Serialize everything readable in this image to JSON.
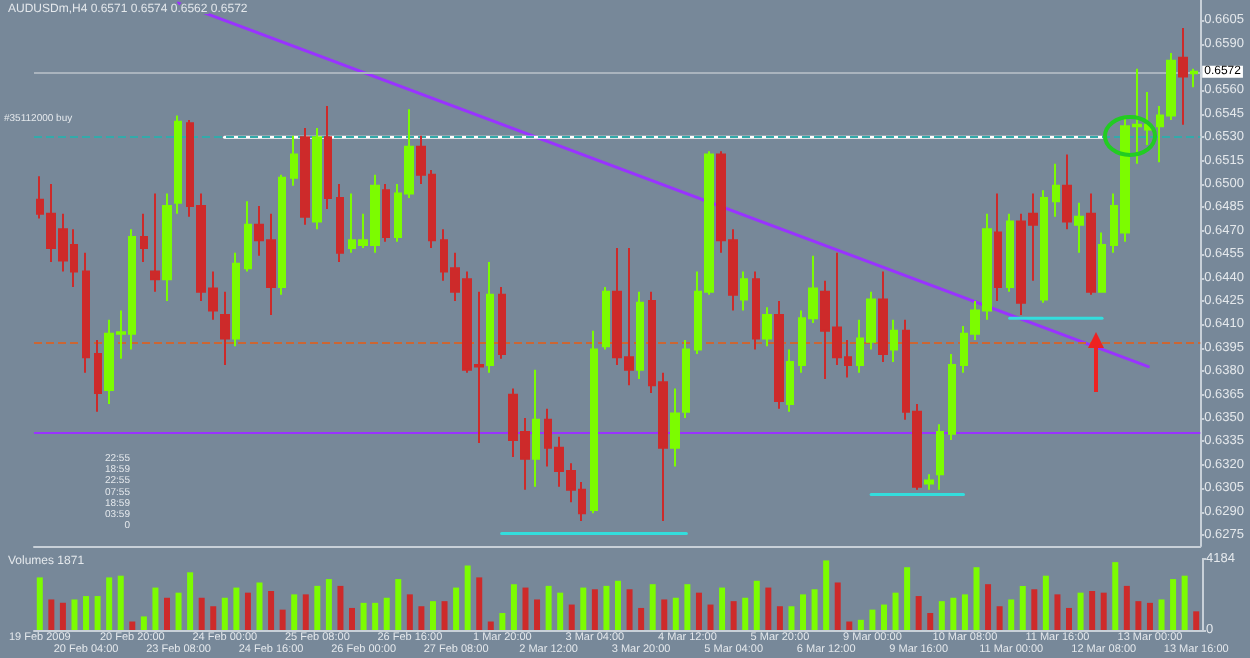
{
  "chart_data": [
    {
      "type": "candlestick",
      "title": "AUDUSDm,H4 0.6571 0.6574 0.6562 0.6572",
      "categories": [
        "19 Feb 2009",
        null,
        null,
        null,
        "20 Feb 04:00",
        null,
        null,
        null,
        "20 Feb 20:00",
        null,
        null,
        null,
        "23 Feb 08:00",
        null,
        null,
        null,
        "24 Feb 00:00",
        null,
        null,
        null,
        "24 Feb 16:00",
        null,
        null,
        null,
        "25 Feb 08:00",
        null,
        null,
        null,
        "26 Feb 00:00",
        null,
        null,
        null,
        "26 Feb 16:00",
        null,
        null,
        null,
        "27 Feb 08:00",
        null,
        null,
        null,
        "1 Mar 20:00",
        null,
        null,
        null,
        "2 Mar 12:00",
        null,
        null,
        null,
        "3 Mar 04:00",
        null,
        null,
        null,
        "3 Mar 20:00",
        null,
        null,
        null,
        "4 Mar 12:00",
        null,
        null,
        null,
        "5 Mar 04:00",
        null,
        null,
        null,
        "5 Mar 20:00",
        null,
        null,
        null,
        "6 Mar 12:00",
        null,
        null,
        null,
        "9 Mar 00:00",
        null,
        null,
        null,
        "9 Mar 16:00",
        null,
        null,
        null,
        "10 Mar 08:00",
        null,
        null,
        null,
        "11 Mar 00:00",
        null,
        null,
        null,
        "11 Mar 16:00",
        null,
        null,
        null,
        "12 Mar 08:00",
        null,
        null,
        null,
        "13 Mar 00:00",
        null,
        null,
        null,
        "13 Mar 16:00"
      ],
      "ohlc": [
        [
          0.649,
          0.6505,
          0.6478,
          0.6481
        ],
        [
          0.6481,
          0.65,
          0.645,
          0.6459
        ],
        [
          0.6471,
          0.6481,
          0.6444,
          0.6451
        ],
        [
          0.6461,
          0.6471,
          0.6434,
          0.6444
        ],
        [
          0.6444,
          0.6456,
          0.6379,
          0.6389
        ],
        [
          0.6391,
          0.64,
          0.6354,
          0.6366
        ],
        [
          0.6368,
          0.6413,
          0.6359,
          0.6404
        ],
        [
          0.6404,
          0.6419,
          0.6388,
          0.6405
        ],
        [
          0.6404,
          0.6471,
          0.6394,
          0.6466
        ],
        [
          0.6466,
          0.6481,
          0.645,
          0.6459
        ],
        [
          0.6444,
          0.6494,
          0.6431,
          0.6439
        ],
        [
          0.6439,
          0.6494,
          0.6425,
          0.6486
        ],
        [
          0.6488,
          0.6544,
          0.6481,
          0.654
        ],
        [
          0.6539,
          0.6541,
          0.6479,
          0.6486
        ],
        [
          0.6486,
          0.6494,
          0.6425,
          0.6431
        ],
        [
          0.6433,
          0.6444,
          0.6413,
          0.6419
        ],
        [
          0.6416,
          0.6431,
          0.6384,
          0.6401
        ],
        [
          0.6401,
          0.6456,
          0.6396,
          0.6449
        ],
        [
          0.6446,
          0.6489,
          0.6444,
          0.6474
        ],
        [
          0.6474,
          0.6486,
          0.6454,
          0.6464
        ],
        [
          0.6464,
          0.6481,
          0.6416,
          0.6434
        ],
        [
          0.6434,
          0.6506,
          0.6429,
          0.6504
        ],
        [
          0.6504,
          0.6531,
          0.6499,
          0.6519
        ],
        [
          0.653,
          0.6536,
          0.6474,
          0.6479
        ],
        [
          0.6476,
          0.6536,
          0.6471,
          0.653
        ],
        [
          0.653,
          0.655,
          0.6484,
          0.6491
        ],
        [
          0.6491,
          0.65,
          0.645,
          0.6456
        ],
        [
          0.6459,
          0.6494,
          0.6456,
          0.6464
        ],
        [
          0.6461,
          0.6481,
          0.6459,
          0.6464
        ],
        [
          0.6461,
          0.6506,
          0.6456,
          0.6499
        ],
        [
          0.6496,
          0.65,
          0.6463,
          0.6466
        ],
        [
          0.6466,
          0.65,
          0.6463,
          0.6494
        ],
        [
          0.6494,
          0.6548,
          0.6491,
          0.6524
        ],
        [
          0.6524,
          0.6531,
          0.65,
          0.6506
        ],
        [
          0.6506,
          0.6509,
          0.6459,
          0.6464
        ],
        [
          0.6464,
          0.6471,
          0.6438,
          0.6444
        ],
        [
          0.6446,
          0.6456,
          0.6425,
          0.6431
        ],
        [
          0.6439,
          0.6444,
          0.6379,
          0.6381
        ],
        [
          0.6384,
          0.6431,
          0.6334,
          0.6383
        ],
        [
          0.6384,
          0.645,
          0.6379,
          0.6429
        ],
        [
          0.6429,
          0.6434,
          0.6388,
          0.6391
        ],
        [
          0.6365,
          0.6369,
          0.6325,
          0.6336
        ],
        [
          0.6341,
          0.635,
          0.6304,
          0.6324
        ],
        [
          0.6324,
          0.6381,
          0.6306,
          0.6349
        ],
        [
          0.6349,
          0.6356,
          0.6319,
          0.6331
        ],
        [
          0.6331,
          0.6338,
          0.6306,
          0.6316
        ],
        [
          0.6316,
          0.6321,
          0.6296,
          0.6304
        ],
        [
          0.6304,
          0.6309,
          0.6284,
          0.6289
        ],
        [
          0.6291,
          0.6406,
          0.6289,
          0.6394
        ],
        [
          0.6396,
          0.6434,
          0.6394,
          0.6431
        ],
        [
          0.6431,
          0.6459,
          0.6384,
          0.6389
        ],
        [
          0.6389,
          0.6459,
          0.6371,
          0.6381
        ],
        [
          0.6381,
          0.6431,
          0.6375,
          0.6424
        ],
        [
          0.6425,
          0.6431,
          0.6366,
          0.6371
        ],
        [
          0.6373,
          0.6379,
          0.6284,
          0.6331
        ],
        [
          0.6331,
          0.6369,
          0.6319,
          0.6353
        ],
        [
          0.6354,
          0.64,
          0.635,
          0.6394
        ],
        [
          0.6394,
          0.6444,
          0.6391,
          0.6431
        ],
        [
          0.6431,
          0.6521,
          0.6429,
          0.6519
        ],
        [
          0.6519,
          0.6521,
          0.6456,
          0.6464
        ],
        [
          0.6464,
          0.6471,
          0.6419,
          0.6429
        ],
        [
          0.6426,
          0.6444,
          0.6419,
          0.6439
        ],
        [
          0.6439,
          0.6444,
          0.6394,
          0.6401
        ],
        [
          0.6401,
          0.6421,
          0.6396,
          0.6416
        ],
        [
          0.6416,
          0.6425,
          0.6356,
          0.6361
        ],
        [
          0.6359,
          0.6394,
          0.6354,
          0.6386
        ],
        [
          0.6384,
          0.6419,
          0.6379,
          0.6414
        ],
        [
          0.6414,
          0.6454,
          0.6411,
          0.6433
        ],
        [
          0.6431,
          0.6438,
          0.6375,
          0.6406
        ],
        [
          0.6408,
          0.6456,
          0.6384,
          0.6389
        ],
        [
          0.6389,
          0.64,
          0.6376,
          0.6384
        ],
        [
          0.6384,
          0.6413,
          0.6379,
          0.6401
        ],
        [
          0.6399,
          0.6431,
          0.6394,
          0.6426
        ],
        [
          0.6426,
          0.6444,
          0.6386,
          0.6391
        ],
        [
          0.6394,
          0.6413,
          0.6386,
          0.6406
        ],
        [
          0.6406,
          0.6413,
          0.6349,
          0.6354
        ],
        [
          0.6354,
          0.6359,
          0.6304,
          0.6306
        ],
        [
          0.6308,
          0.6314,
          0.6304,
          0.631
        ],
        [
          0.6314,
          0.6346,
          0.6304,
          0.6341
        ],
        [
          0.634,
          0.6391,
          0.6336,
          0.6384
        ],
        [
          0.6384,
          0.6409,
          0.6379,
          0.6404
        ],
        [
          0.6404,
          0.6425,
          0.64,
          0.6419
        ],
        [
          0.6419,
          0.6481,
          0.6413,
          0.6471
        ],
        [
          0.6469,
          0.6494,
          0.6425,
          0.6434
        ],
        [
          0.6434,
          0.6481,
          0.6431,
          0.6476
        ],
        [
          0.6476,
          0.6481,
          0.6416,
          0.6424
        ],
        [
          0.6481,
          0.6494,
          0.6438,
          0.6474
        ],
        [
          0.6426,
          0.6496,
          0.6424,
          0.6491
        ],
        [
          0.6489,
          0.6513,
          0.6479,
          0.6499
        ],
        [
          0.6499,
          0.6519,
          0.6471,
          0.6476
        ],
        [
          0.6474,
          0.6488,
          0.6456,
          0.6479
        ],
        [
          0.6481,
          0.6494,
          0.6429,
          0.6431
        ],
        [
          0.6431,
          0.6469,
          0.6431,
          0.6461
        ],
        [
          0.6461,
          0.6494,
          0.6456,
          0.6486
        ],
        [
          0.6469,
          0.6544,
          0.6463,
          0.6537
        ],
        [
          0.6537,
          0.6574,
          0.6513,
          0.6538
        ],
        [
          0.6535,
          0.6559,
          0.6525,
          0.6538
        ],
        [
          0.6537,
          0.655,
          0.6514,
          0.6544
        ],
        [
          0.6544,
          0.6584,
          0.6541,
          0.6579
        ],
        [
          0.6581,
          0.66,
          0.6538,
          0.6569
        ],
        [
          0.6571,
          0.6574,
          0.6562,
          0.6572
        ]
      ],
      "colors": [
        "#cd2a2a",
        "#cd2a2a",
        "#cd2a2a",
        "#cd2a2a",
        "#cd2a2a",
        "#cd2a2a",
        "#7cfc00",
        "#7cfc00",
        "#7cfc00",
        "#cd2a2a",
        "#cd2a2a",
        "#7cfc00",
        "#7cfc00",
        "#cd2a2a",
        "#cd2a2a",
        "#cd2a2a",
        "#cd2a2a",
        "#7cfc00",
        "#7cfc00",
        "#cd2a2a",
        "#cd2a2a",
        "#7cfc00",
        "#7cfc00",
        "#cd2a2a",
        "#7cfc00",
        "#cd2a2a",
        "#cd2a2a",
        "#7cfc00",
        "#7cfc00",
        "#7cfc00",
        "#cd2a2a",
        "#7cfc00",
        "#7cfc00",
        "#cd2a2a",
        "#cd2a2a",
        "#cd2a2a",
        "#cd2a2a",
        "#cd2a2a",
        "#cd2a2a",
        "#7cfc00",
        "#cd2a2a",
        "#cd2a2a",
        "#cd2a2a",
        "#7cfc00",
        "#cd2a2a",
        "#cd2a2a",
        "#cd2a2a",
        "#cd2a2a",
        "#7cfc00",
        "#7cfc00",
        "#cd2a2a",
        "#cd2a2a",
        "#7cfc00",
        "#cd2a2a",
        "#cd2a2a",
        "#7cfc00",
        "#7cfc00",
        "#7cfc00",
        "#7cfc00",
        "#cd2a2a",
        "#cd2a2a",
        "#7cfc00",
        "#cd2a2a",
        "#7cfc00",
        "#cd2a2a",
        "#7cfc00",
        "#7cfc00",
        "#7cfc00",
        "#cd2a2a",
        "#cd2a2a",
        "#cd2a2a",
        "#7cfc00",
        "#7cfc00",
        "#cd2a2a",
        "#7cfc00",
        "#cd2a2a",
        "#cd2a2a",
        "#7cfc00",
        "#7cfc00",
        "#7cfc00",
        "#7cfc00",
        "#7cfc00",
        "#7cfc00",
        "#cd2a2a",
        "#7cfc00",
        "#cd2a2a",
        "#cd2a2a",
        "#7cfc00",
        "#7cfc00",
        "#cd2a2a",
        "#7cfc00",
        "#cd2a2a",
        "#7cfc00",
        "#7cfc00",
        "#7cfc00",
        "#7cfc00",
        "#7cfc00",
        "#7cfc00",
        "#7cfc00",
        "#cd2a2a",
        "#7cfc00"
      ],
      "series": [
        {
          "type": "line",
          "color": "#9933ff",
          "x": [
            "23 Feb 08:00",
            "13 Mar 00:00"
          ],
          "values": [
            0.6616,
            0.6383
          ]
        },
        {
          "type": "line",
          "color": "#ffffff",
          "x": [
            "24 Feb 00:00",
            "12 Mar 08:00"
          ],
          "values": [
            0.653,
            0.653
          ]
        },
        {
          "type": "line",
          "color": "#33dddd",
          "x": [
            "1 Mar 20:00",
            "4 Mar 12:00"
          ],
          "values": [
            0.6276,
            0.6276
          ]
        },
        {
          "type": "line",
          "color": "#33dddd",
          "x": [
            "9 Mar 00:00",
            "10 Mar 08:00"
          ],
          "values": [
            0.6301,
            0.6301
          ]
        },
        {
          "type": "line",
          "color": "#33dddd",
          "x": [
            "11 Mar 00:00",
            "12 Mar 08:00"
          ],
          "values": [
            0.6414,
            0.6414
          ]
        }
      ],
      "ref_lines": [
        {
          "axis": "y",
          "value": 0.653,
          "color": "#33aaaa",
          "line_style": "dashed"
        },
        {
          "axis": "y",
          "value": 0.6399,
          "color": "#cc6633",
          "line_style": "dashed"
        },
        {
          "axis": "y",
          "value": 0.6341,
          "color": "#9933ff",
          "line_style": "solid"
        },
        {
          "axis": "y",
          "value": 0.6572,
          "color": "#aab4be",
          "line_style": "solid",
          "label": "0.6572"
        }
      ],
      "annotations": [
        "#35112000 buy",
        "22:55",
        "18:59",
        "22:55",
        "07:55",
        "18:59",
        "03:59",
        "0"
      ],
      "ylim": [
        0.6268,
        0.6618
      ],
      "yticks": [
        0.6605,
        {
          "value": 0.659,
          "label": "0.6590"
        },
        {
          "value": 0.656,
          "label": "0.6560"
        },
        0.6545,
        {
          "value": 0.653,
          "label": "0.6530"
        },
        0.6515,
        {
          "value": 0.65,
          "label": "0.6500"
        },
        0.6485,
        {
          "value": 0.647,
          "label": "0.6470"
        },
        0.6455,
        {
          "value": 0.644,
          "label": "0.6440"
        },
        0.6425,
        {
          "value": 0.641,
          "label": "0.6410"
        },
        0.6395,
        {
          "value": 0.638,
          "label": "0.6380"
        },
        0.6365,
        {
          "value": 0.635,
          "label": "0.6350"
        },
        0.6335,
        {
          "value": 0.632,
          "label": "0.6320"
        },
        0.6305,
        {
          "value": 0.629,
          "label": "0.6290"
        },
        0.6275
      ],
      "tick_labels": "y",
      "grid": false
    },
    {
      "type": "bar",
      "title": "Volumes 1871",
      "categories": [
        "19 Feb 2009",
        null,
        null,
        null,
        "20 Feb 04:00",
        null,
        null,
        null,
        "20 Feb 20:00",
        null,
        null,
        null,
        "23 Feb 08:00",
        null,
        null,
        null,
        "24 Feb 00:00",
        null,
        null,
        null,
        "24 Feb 16:00",
        null,
        null,
        null,
        "25 Feb 08:00",
        null,
        null,
        null,
        "26 Feb 00:00",
        null,
        null,
        null,
        "26 Feb 16:00",
        null,
        null,
        null,
        "27 Feb 08:00",
        null,
        null,
        null,
        "1 Mar 20:00",
        null,
        null,
        null,
        "2 Mar 12:00",
        null,
        null,
        null,
        "3 Mar 04:00",
        null,
        null,
        null,
        "3 Mar 20:00",
        null,
        null,
        null,
        "4 Mar 12:00",
        null,
        null,
        null,
        "5 Mar 04:00",
        null,
        null,
        null,
        "5 Mar 20:00",
        null,
        null,
        null,
        "6 Mar 12:00",
        null,
        null,
        null,
        "9 Mar 00:00",
        null,
        null,
        null,
        "9 Mar 16:00",
        null,
        null,
        null,
        "10 Mar 08:00",
        null,
        null,
        null,
        "11 Mar 00:00",
        null,
        null,
        null,
        "11 Mar 16:00",
        null,
        null,
        null,
        "12 Mar 08:00",
        null,
        null,
        null,
        "13 Mar 00:00",
        null,
        null,
        null,
        "13 Mar 16:00"
      ],
      "values": [
        3100,
        1800,
        1600,
        1800,
        2000,
        2000,
        3100,
        3200,
        500,
        800,
        2500,
        1900,
        2200,
        3400,
        1900,
        1400,
        1900,
        2500,
        2200,
        2800,
        2300,
        1200,
        2100,
        2100,
        2600,
        3000,
        2600,
        1300,
        1600,
        1600,
        1900,
        3000,
        2100,
        1400,
        1700,
        1700,
        2500,
        3800,
        3100,
        500,
        1000,
        2700,
        2500,
        1800,
        2600,
        2200,
        1500,
        2500,
        2400,
        2600,
        2900,
        2400,
        1300,
        2700,
        1800,
        1900,
        2700,
        2200,
        1500,
        2500,
        1700,
        1900,
        2900,
        2500,
        1400,
        1400,
        2100,
        2400,
        4100,
        2800,
        500,
        600,
        1200,
        1500,
        2200,
        3700,
        2000,
        1000,
        1700,
        1900,
        2100,
        3700,
        2700,
        1400,
        1800,
        2600,
        2400,
        3200,
        2100,
        1300,
        2200,
        2300,
        2200,
        4000,
        2600,
        1700,
        1600,
        1800,
        3000,
        3200,
        1100
      ],
      "colors": [
        "#7cfc00",
        "#cd2a2a",
        "#cd2a2a",
        "#7cfc00",
        "#7cfc00",
        "#7cfc00",
        "#7cfc00",
        "#7cfc00",
        "#cd2a2a",
        "#7cfc00",
        "#7cfc00",
        "#cd2a2a",
        "#7cfc00",
        "#7cfc00",
        "#cd2a2a",
        "#cd2a2a",
        "#7cfc00",
        "#7cfc00",
        "#cd2a2a",
        "#7cfc00",
        "#cd2a2a",
        "#cd2a2a",
        "#7cfc00",
        "#cd2a2a",
        "#7cfc00",
        "#7cfc00",
        "#cd2a2a",
        "#cd2a2a",
        "#7cfc00",
        "#7cfc00",
        "#7cfc00",
        "#7cfc00",
        "#cd2a2a",
        "#cd2a2a",
        "#7cfc00",
        "#cd2a2a",
        "#7cfc00",
        "#7cfc00",
        "#cd2a2a",
        "#cd2a2a",
        "#7cfc00",
        "#7cfc00",
        "#cd2a2a",
        "#cd2a2a",
        "#7cfc00",
        "#7cfc00",
        "#cd2a2a",
        "#7cfc00",
        "#cd2a2a",
        "#7cfc00",
        "#7cfc00",
        "#cd2a2a",
        "#cd2a2a",
        "#7cfc00",
        "#cd2a2a",
        "#7cfc00",
        "#7cfc00",
        "#cd2a2a",
        "#cd2a2a",
        "#7cfc00",
        "#cd2a2a",
        "#7cfc00",
        "#7cfc00",
        "#cd2a2a",
        "#cd2a2a",
        "#7cfc00",
        "#7cfc00",
        "#7cfc00",
        "#7cfc00",
        "#cd2a2a",
        "#cd2a2a",
        "#7cfc00",
        "#7cfc00",
        "#7cfc00",
        "#7cfc00",
        "#7cfc00",
        "#cd2a2a",
        "#cd2a2a",
        "#7cfc00",
        "#7cfc00",
        "#7cfc00",
        "#7cfc00",
        "#cd2a2a",
        "#cd2a2a",
        "#7cfc00",
        "#7cfc00",
        "#cd2a2a",
        "#7cfc00",
        "#cd2a2a",
        "#cd2a2a",
        "#7cfc00",
        "#cd2a2a",
        "#cd2a2a",
        "#7cfc00",
        "#cd2a2a",
        "#cd2a2a",
        "#cd2a2a",
        "#7cfc00",
        "#7cfc00",
        "#7cfc00",
        "#cd2a2a"
      ],
      "ylim": [
        0,
        4184
      ],
      "yticks": [
        0,
        4184
      ],
      "grid": false
    }
  ]
}
